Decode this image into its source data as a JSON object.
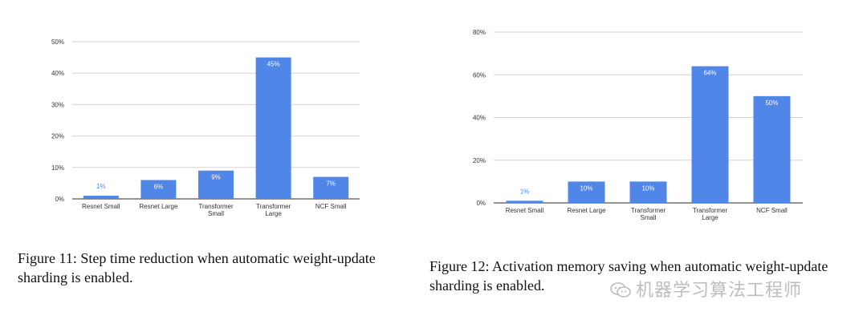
{
  "chart_data": [
    {
      "type": "bar",
      "categories": [
        "Resnet Small",
        "Resnet Large",
        "Transformer Small",
        "Transformer Large",
        "NCF Small"
      ],
      "values": [
        1,
        6,
        9,
        45,
        7
      ],
      "data_labels": [
        "1%",
        "6%",
        "9%",
        "45%",
        "7%"
      ],
      "ylim": [
        0,
        50
      ],
      "y_ticks": [
        0,
        10,
        20,
        30,
        40,
        50
      ],
      "y_tick_labels": [
        "0%",
        "10%",
        "20%",
        "30%",
        "40%",
        "50%"
      ],
      "grid": true,
      "bar_color": "#4f86e8",
      "caption": "Figure 11:  Step time reduction when automatic weight-update sharding is enabled."
    },
    {
      "type": "bar",
      "categories": [
        "Resnet Small",
        "Resnet Large",
        "Transformer Small",
        "Transformer Large",
        "NCF Small"
      ],
      "values": [
        1,
        10,
        10,
        64,
        50
      ],
      "data_labels": [
        "1%",
        "10%",
        "10%",
        "64%",
        "50%"
      ],
      "ylim": [
        0,
        80
      ],
      "y_ticks": [
        0,
        20,
        40,
        60,
        80
      ],
      "y_tick_labels": [
        "0%",
        "20%",
        "40%",
        "60%",
        "80%"
      ],
      "grid": true,
      "bar_color": "#4f86e8",
      "caption": "Figure 12: Activation memory saving when automatic weight-update sharding is enabled."
    }
  ],
  "watermark": {
    "text": "机器学习算法工程师",
    "icon": "wechat-icon"
  }
}
